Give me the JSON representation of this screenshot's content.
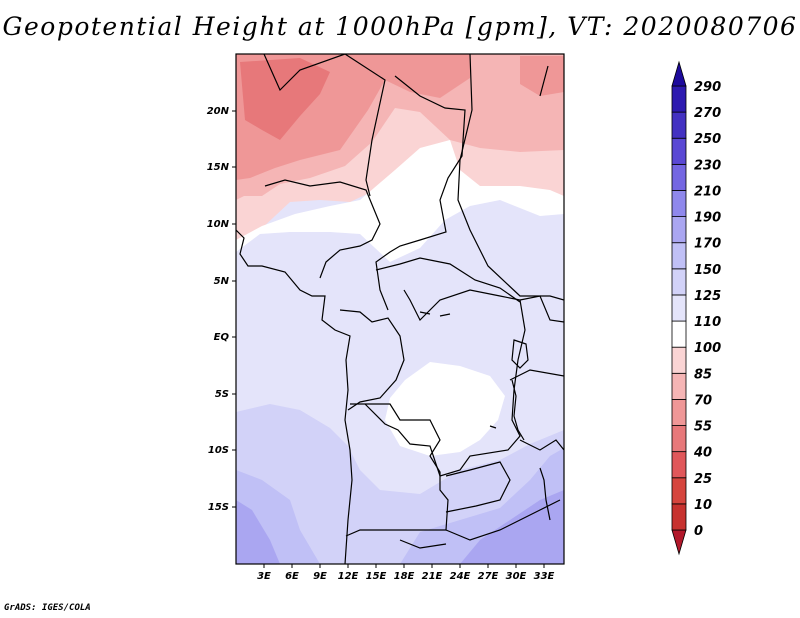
{
  "title": "Geopotential Height at 1000hPa [gpm], VT: 2020080706",
  "credit": "GrADS: IGES/COLA",
  "lat_labels": [
    "20N",
    "15N",
    "10N",
    "5N",
    "EQ",
    "5S",
    "10S",
    "15S"
  ],
  "lon_labels": [
    "3E",
    "6E",
    "9E",
    "12E",
    "15E",
    "18E",
    "21E",
    "24E",
    "27E",
    "30E",
    "33E"
  ],
  "colorbar": {
    "levels": [
      "0",
      "10",
      "25",
      "40",
      "55",
      "70",
      "85",
      "100",
      "110",
      "125",
      "150",
      "170",
      "190",
      "210",
      "230",
      "250",
      "270",
      "290"
    ],
    "colors": [
      "#b2182b",
      "#c7322f",
      "#d6453e",
      "#e0575a",
      "#e7787a",
      "#ef9797",
      "#f5b5b5",
      "#fad4d4",
      "#ffffff",
      "#e4e4fa",
      "#d2d2f8",
      "#c0c0f6",
      "#aaa6f1",
      "#8f88ec",
      "#7466e2",
      "#5a48d4",
      "#4331c2",
      "#2d1ab0",
      "#1d0a9c"
    ]
  },
  "legend": [
    {
      "label": "85",
      "color": "#f5b5b5"
    },
    {
      "label": "100",
      "color": "#fad4d4"
    },
    {
      "label": "110",
      "color": "#ffffff"
    },
    {
      "label": "125",
      "color": "#e4e4fa"
    },
    {
      "label": "150",
      "color": "#d2d2f8"
    },
    {
      "label": "170",
      "color": "#c0c0f6"
    },
    {
      "label": "190",
      "color": "#aaa6f1"
    },
    {
      "label": "55",
      "color": "#e7787a"
    },
    {
      "label": "70",
      "color": "#ef9797"
    }
  ]
}
